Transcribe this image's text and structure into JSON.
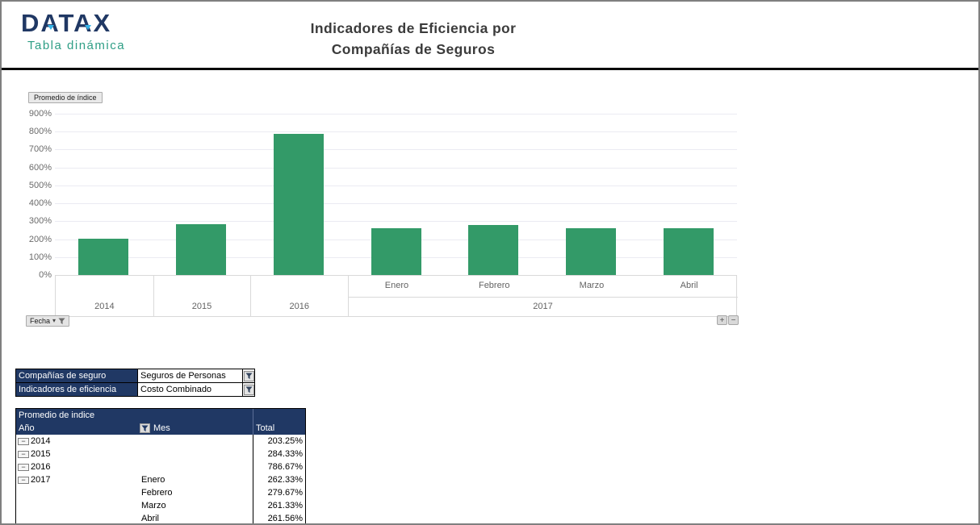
{
  "header": {
    "logo_title": "DATAX",
    "logo_subtitle": "Tabla dinámica",
    "title_line1": "Indicadores de Eficiencia por",
    "title_line2": "Compañías de Seguros"
  },
  "icons": {
    "dropdown_arrow": "▾",
    "expand": "+",
    "collapse": "−",
    "row_collapse": "−",
    "filter": "funnel"
  },
  "chart_data": {
    "type": "bar",
    "title": "",
    "value_field_button": "Promedio de índice",
    "axis_field_button": "Fecha",
    "xlabel": "",
    "ylabel": "",
    "ylim": [
      0,
      900
    ],
    "ytick_step": 100,
    "ytick_suffix": "%",
    "grid": true,
    "legend": false,
    "bar_color": "#339A68",
    "categories": [
      "2014",
      "2015",
      "2016",
      "Enero 2017",
      "Febrero 2017",
      "Marzo 2017",
      "Abril 2017"
    ],
    "values": [
      203.25,
      284.33,
      786.67,
      262.33,
      279.67,
      261.33,
      261.56
    ],
    "groups": [
      {
        "year": "2014",
        "months": [],
        "values": [
          203.25
        ]
      },
      {
        "year": "2015",
        "months": [],
        "values": [
          284.33
        ]
      },
      {
        "year": "2016",
        "months": [],
        "values": [
          786.67
        ]
      },
      {
        "year": "2017",
        "months": [
          "Enero",
          "Febrero",
          "Marzo",
          "Abril"
        ],
        "values": [
          262.33,
          279.67,
          261.33,
          261.56
        ]
      }
    ]
  },
  "filters": [
    {
      "label": "Compañías de seguro",
      "value": "Seguros de Personas"
    },
    {
      "label": "Indicadores de eficiencia",
      "value": "Costo Combinado"
    }
  ],
  "pivot": {
    "title": "Promedio de indice",
    "columns": {
      "year": "Año",
      "month": "Mes",
      "total": "Total"
    },
    "rows": [
      {
        "year": "2014",
        "month": "",
        "total": "203.25%",
        "collapsible": true
      },
      {
        "year": "2015",
        "month": "",
        "total": "284.33%",
        "collapsible": true
      },
      {
        "year": "2016",
        "month": "",
        "total": "786.67%",
        "collapsible": true
      },
      {
        "year": "2017",
        "month": "Enero",
        "total": "262.33%",
        "collapsible": true
      },
      {
        "year": "",
        "month": "Febrero",
        "total": "279.67%",
        "collapsible": false
      },
      {
        "year": "",
        "month": "Marzo",
        "total": "261.33%",
        "collapsible": false
      },
      {
        "year": "",
        "month": "Abril",
        "total": "261.56%",
        "collapsible": false
      }
    ]
  },
  "colors": {
    "navy": "#203864",
    "bar_green": "#339A68",
    "teal": "#2E9E85",
    "title_text": "#3B3B3B",
    "axis_text": "#6B6B6B",
    "gridline": "#EBEBF2"
  }
}
